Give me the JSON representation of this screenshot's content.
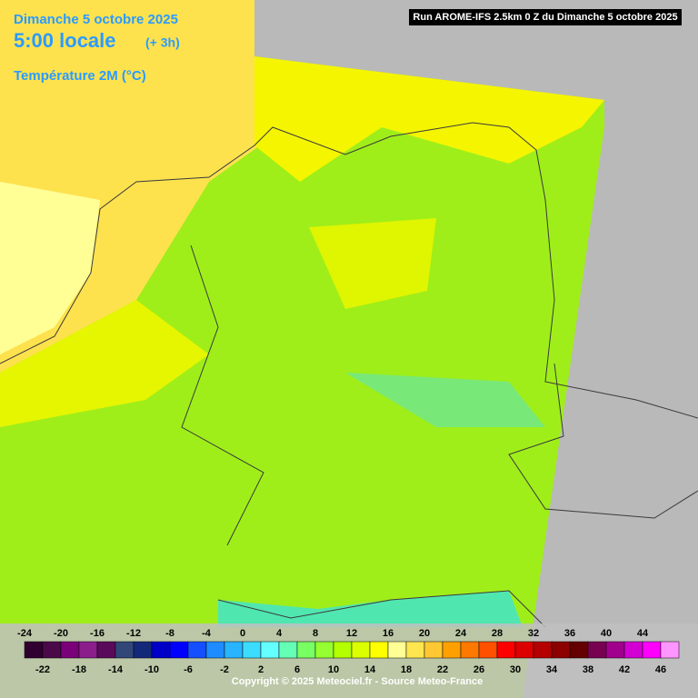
{
  "header": {
    "date": "Dimanche 5 octobre 2025",
    "time": "5:00 locale",
    "offset": "(+ 3h)",
    "variable": "Température 2M (°C)",
    "run": "Run AROME-IFS 2.5km 0 Z du Dimanche 5 octobre 2025"
  },
  "legend": {
    "values": [
      -24,
      -22,
      -20,
      -18,
      -16,
      -14,
      -12,
      -10,
      -8,
      -6,
      -4,
      -2,
      0,
      2,
      4,
      6,
      8,
      10,
      12,
      14,
      16,
      18,
      20,
      22,
      24,
      26,
      28,
      30,
      32,
      34,
      36,
      38,
      40,
      42,
      44,
      46
    ],
    "colors": [
      "#300030",
      "#4a0a4a",
      "#7a007a",
      "#8c1e8c",
      "#5a0a5a",
      "#324678",
      "#14287a",
      "#0000c8",
      "#0000ff",
      "#1450ff",
      "#1e8cff",
      "#28b4ff",
      "#3cdcff",
      "#64ffff",
      "#64ffb4",
      "#78ff64",
      "#96ff32",
      "#b4ff00",
      "#dcff00",
      "#ffff00",
      "#ffff96",
      "#ffe650",
      "#ffc832",
      "#ffa000",
      "#ff7800",
      "#ff5000",
      "#ff0000",
      "#dc0000",
      "#b40000",
      "#8c0000",
      "#640000",
      "#780050",
      "#a0008c",
      "#d200d2",
      "#ff00ff",
      "#ff96ff"
    ]
  },
  "copyright": "Copyright © 2025 Meteociel.fr - Source Meteo-France"
}
